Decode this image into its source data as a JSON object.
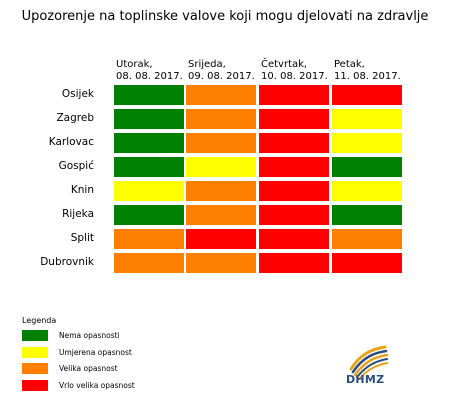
{
  "title": "Upozorenje na toplinske valove koji mogu djelovati na zdravlje",
  "colors": {
    "0": "#008000",
    "1": "#ffff00",
    "2": "#ff8000",
    "3": "#ff0000"
  },
  "chart_data": {
    "type": "heatmap",
    "title": "Upozorenje na toplinske valove koji mogu djelovati na zdravlje",
    "columns": [
      {
        "day": "Utorak,",
        "date": "08. 08. 2017."
      },
      {
        "day": "Srijeda,",
        "date": "09. 08. 2017."
      },
      {
        "day": "Četvrtak,",
        "date": "10. 08. 2017."
      },
      {
        "day": "Petak,",
        "date": "11. 08. 2017."
      }
    ],
    "rows": [
      "Osijek",
      "Zagreb",
      "Karlovac",
      "Gospić",
      "Knin",
      "Rijeka",
      "Split",
      "Dubrovnik"
    ],
    "levels": [
      [
        0,
        2,
        3,
        3
      ],
      [
        0,
        2,
        3,
        1
      ],
      [
        0,
        2,
        3,
        1
      ],
      [
        0,
        1,
        3,
        0
      ],
      [
        1,
        2,
        3,
        1
      ],
      [
        0,
        2,
        3,
        0
      ],
      [
        2,
        3,
        3,
        2
      ],
      [
        2,
        2,
        3,
        3
      ]
    ],
    "level_names": [
      "Nema opasnosti",
      "Umjerena opasnost",
      "Velika opasnost",
      "Vrlo velika opasnost"
    ]
  },
  "legend": {
    "title": "Legenda",
    "items": [
      {
        "label": "Nema opasnosti",
        "color": "#008000"
      },
      {
        "label": "Umjerena opasnost",
        "color": "#ffff00"
      },
      {
        "label": "Velika opasnost",
        "color": "#ff8000"
      },
      {
        "label": "Vrlo velika opasnost",
        "color": "#ff0000"
      }
    ]
  },
  "logo": {
    "text": "DHMZ"
  }
}
